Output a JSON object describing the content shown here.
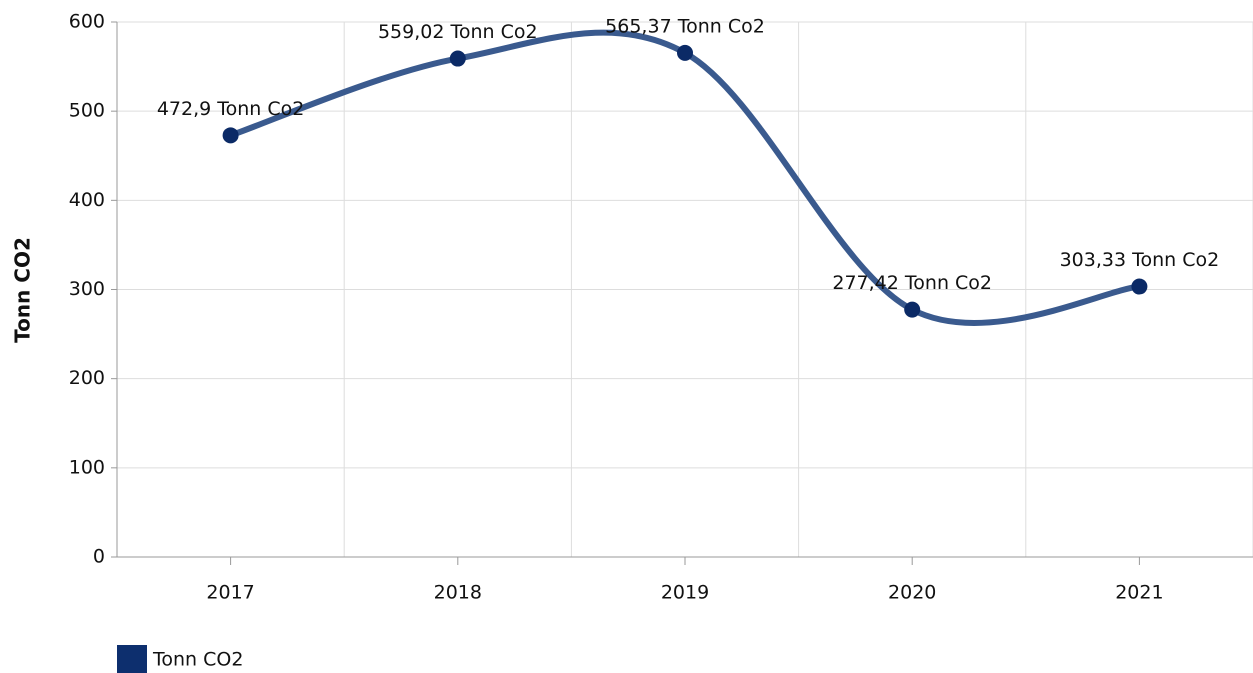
{
  "chart_data": {
    "type": "line",
    "y_label": "Tonn CO2",
    "categories": [
      "2017",
      "2018",
      "2019",
      "2020",
      "2021"
    ],
    "series": [
      {
        "name": "Tonn CO2",
        "color": "#3a5a8e",
        "marker_color": "#0b2a66",
        "legend_color": "#0d2f6e",
        "values": [
          472.9,
          559.02,
          565.37,
          277.42,
          303.33
        ],
        "value_labels": [
          "472,9 Tonn Co2",
          "559,02 Tonn Co2",
          "565,37 Tonn Co2",
          "277,42 Tonn Co2",
          "303,33 Tonn Co2"
        ]
      }
    ],
    "ylim": [
      0,
      600
    ],
    "yticks": [
      0,
      100,
      200,
      300,
      400,
      500,
      600
    ],
    "grid": true,
    "smooth": true,
    "legend": "bottom-left"
  }
}
